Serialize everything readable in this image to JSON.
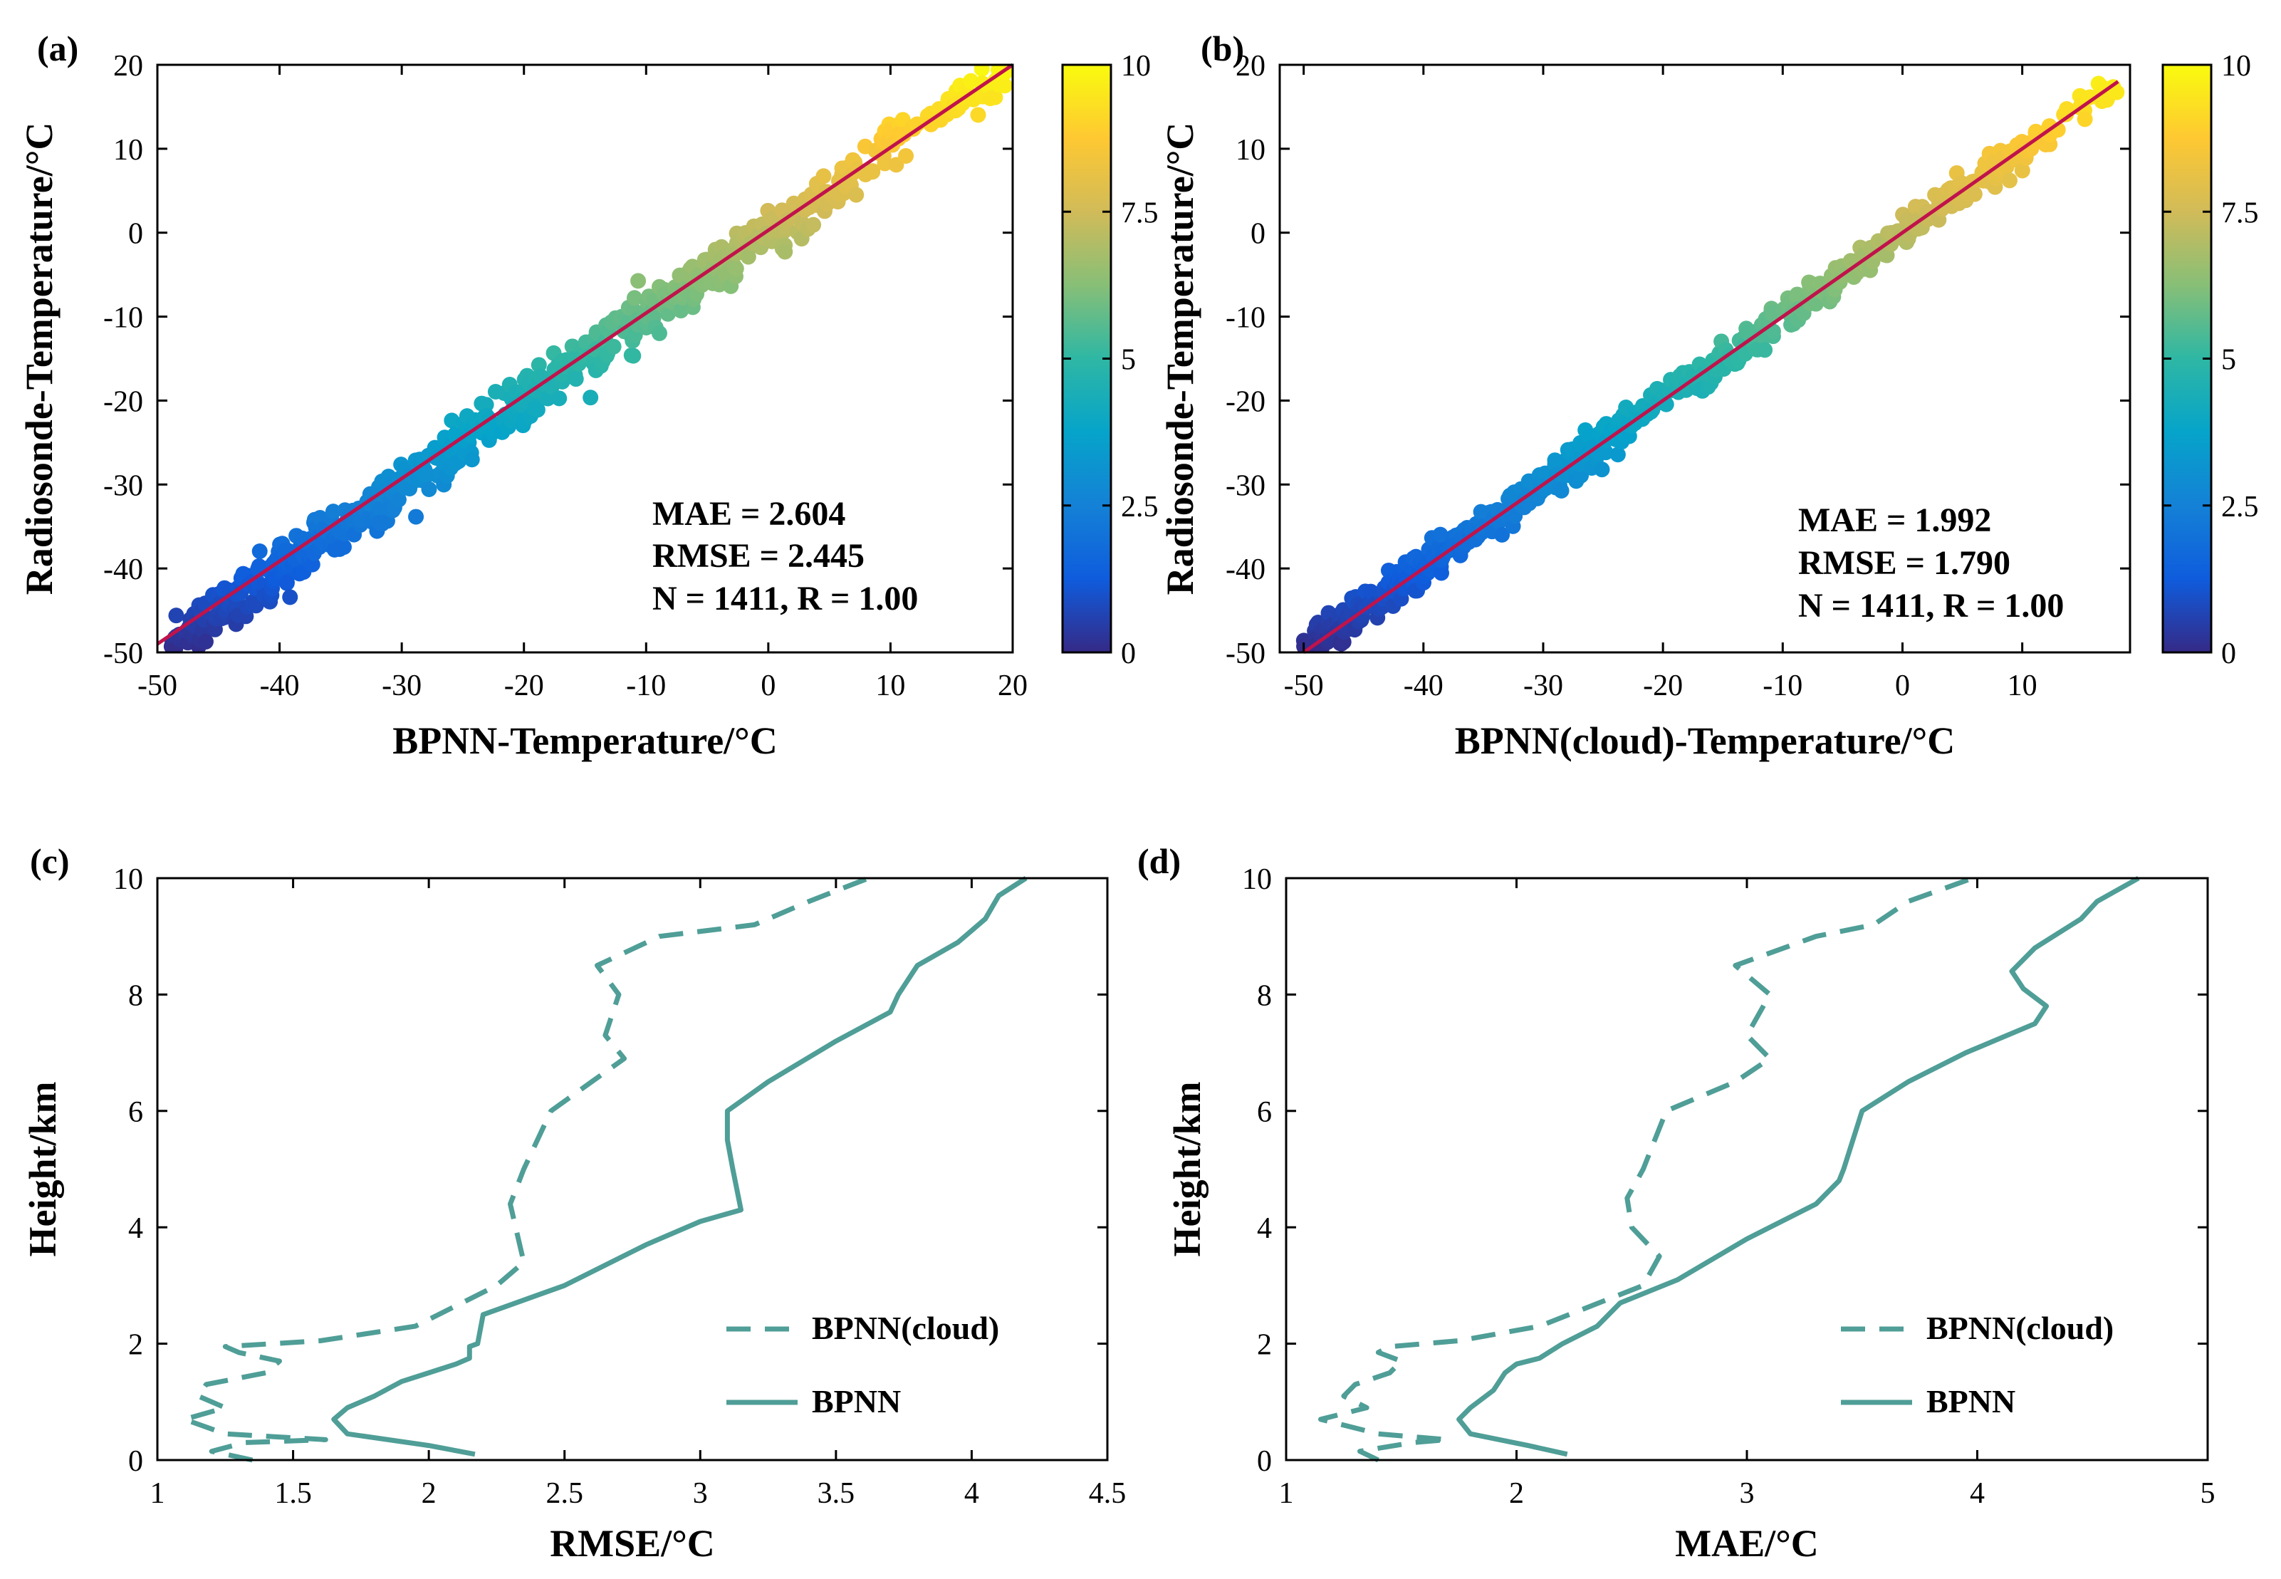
{
  "colors": {
    "teal": "#4f9e97",
    "fit_line": "#c0134b",
    "axis": "#000000"
  },
  "chart_data": [
    {
      "id": "a",
      "panel_label": "(a)",
      "type": "scatter",
      "title": "",
      "xlabel": "BPNN-Temperature/°C",
      "ylabel": "Radiosonde-Temperature/°C",
      "xlim": [
        -50,
        20
      ],
      "ylim": [
        -50,
        20
      ],
      "xticks": [
        -50,
        -40,
        -30,
        -20,
        -10,
        0,
        10,
        20
      ],
      "yticks": [
        -50,
        -40,
        -30,
        -20,
        -10,
        0,
        10,
        20
      ],
      "colorbar": {
        "range": [
          0,
          10
        ],
        "ticks": [
          "0",
          "2.5",
          "5",
          "7.5",
          "10"
        ]
      },
      "fit_line": [
        [
          -50,
          -49
        ],
        [
          20,
          20
        ]
      ],
      "annotations": [
        "MAE = 2.604",
        "RMSE = 2.445",
        "N = 1411, R = 1.00"
      ],
      "points": {
        "n": 1411,
        "x_range": [
          -49,
          20
        ],
        "relation": "y ≈ x",
        "spread": 1.5,
        "color_by": "value scaled -50→0, 20→10"
      }
    },
    {
      "id": "b",
      "panel_label": "(b)",
      "type": "scatter",
      "title": "",
      "xlabel": "BPNN(cloud)-Temperature/°C",
      "ylabel": "Radiosonde-Temperature/°C",
      "xlim": [
        -52,
        19
      ],
      "ylim": [
        -50,
        20
      ],
      "xticks": [
        -50,
        -40,
        -30,
        -20,
        -10,
        0,
        10
      ],
      "yticks": [
        -50,
        -40,
        -30,
        -20,
        -10,
        0,
        10,
        20
      ],
      "colorbar": {
        "range": [
          0,
          10
        ],
        "ticks": [
          "0",
          "2.5",
          "5",
          "7.5",
          "10"
        ]
      },
      "fit_line": [
        [
          -50,
          -50
        ],
        [
          18,
          18
        ]
      ],
      "annotations": [
        "MAE = 1.992",
        "RMSE = 1.790",
        "N = 1411, R = 1.00"
      ],
      "points": {
        "n": 1411,
        "x_range": [
          -50,
          18
        ],
        "relation": "y ≈ x",
        "spread": 1.1,
        "color_by": "value scaled -50→0, 20→10"
      }
    },
    {
      "id": "c",
      "panel_label": "(c)",
      "type": "line",
      "title": "",
      "xlabel": "RMSE/°C",
      "ylabel": "Height/km",
      "xlim": [
        1,
        4.5
      ],
      "ylim": [
        0,
        10
      ],
      "xticks": [
        1,
        1.5,
        2,
        2.5,
        3,
        3.5,
        4,
        4.5
      ],
      "xtick_labels": [
        "1",
        "1.5",
        "2",
        "2.5",
        "3",
        "3.5",
        "4",
        "4.5"
      ],
      "yticks": [
        0,
        2,
        4,
        6,
        8,
        10
      ],
      "legend": {
        "position": "lower-right",
        "entries": [
          "BPNN(cloud)",
          "BPNN"
        ]
      },
      "series": [
        {
          "name": "BPNN(cloud)",
          "style": "dashed",
          "x": [
            1.35,
            1.2,
            1.32,
            1.62,
            1.25,
            1.1,
            1.25,
            1.15,
            1.18,
            1.4,
            1.45,
            1.3,
            1.25,
            1.6,
            1.95,
            2.25,
            2.35,
            2.32,
            2.3,
            2.35,
            2.45,
            2.6,
            2.72,
            2.65,
            2.7,
            2.62,
            2.85,
            3.2,
            3.4,
            3.62
          ],
          "y": [
            0.0,
            0.15,
            0.3,
            0.35,
            0.45,
            0.7,
            0.9,
            1.1,
            1.3,
            1.5,
            1.7,
            1.85,
            1.95,
            2.05,
            2.3,
            3.0,
            3.4,
            4.0,
            4.4,
            5.0,
            6.0,
            6.5,
            6.9,
            7.3,
            8.0,
            8.5,
            9.0,
            9.2,
            9.6,
            10.0
          ]
        },
        {
          "name": "BPNN",
          "style": "solid",
          "x": [
            2.17,
            2.0,
            1.7,
            1.65,
            1.7,
            1.8,
            1.9,
            2.0,
            2.1,
            2.15,
            2.15,
            2.18,
            2.2,
            2.5,
            2.8,
            3.0,
            3.15,
            3.12,
            3.1,
            3.1,
            3.25,
            3.5,
            3.7,
            3.73,
            3.8,
            3.95,
            4.05,
            4.1,
            4.2
          ],
          "y": [
            0.1,
            0.25,
            0.45,
            0.7,
            0.9,
            1.1,
            1.35,
            1.5,
            1.65,
            1.75,
            1.95,
            2.0,
            2.5,
            3.0,
            3.7,
            4.1,
            4.3,
            5.0,
            5.5,
            6.0,
            6.5,
            7.2,
            7.7,
            8.0,
            8.5,
            8.9,
            9.3,
            9.7,
            10.0
          ]
        }
      ]
    },
    {
      "id": "d",
      "panel_label": "(d)",
      "type": "line",
      "title": "",
      "xlabel": "MAE/°C",
      "ylabel": "Height/km",
      "xlim": [
        1,
        5
      ],
      "ylim": [
        0,
        10
      ],
      "xticks": [
        1,
        2,
        3,
        4,
        5
      ],
      "xtick_labels": [
        "1",
        "2",
        "3",
        "4",
        "5"
      ],
      "yticks": [
        0,
        2,
        4,
        6,
        8,
        10
      ],
      "legend": {
        "position": "lower-right",
        "entries": [
          "BPNN(cloud)",
          "BPNN"
        ]
      },
      "series": [
        {
          "name": "BPNN(cloud)",
          "style": "dashed",
          "x": [
            1.4,
            1.32,
            1.55,
            1.7,
            1.4,
            1.15,
            1.35,
            1.25,
            1.3,
            1.45,
            1.5,
            1.4,
            1.45,
            1.75,
            2.1,
            2.55,
            2.62,
            2.5,
            2.48,
            2.55,
            2.65,
            2.95,
            3.1,
            3.0,
            3.1,
            2.95,
            3.3,
            3.55,
            3.7,
            3.98
          ],
          "y": [
            0.0,
            0.15,
            0.3,
            0.35,
            0.45,
            0.7,
            0.9,
            1.1,
            1.3,
            1.5,
            1.7,
            1.85,
            1.95,
            2.05,
            2.3,
            3.0,
            3.5,
            4.0,
            4.5,
            5.0,
            6.0,
            6.5,
            6.9,
            7.3,
            8.0,
            8.5,
            9.0,
            9.2,
            9.6,
            10.0
          ]
        },
        {
          "name": "BPNN",
          "style": "solid",
          "x": [
            2.22,
            2.05,
            1.8,
            1.75,
            1.8,
            1.9,
            1.95,
            2.0,
            2.1,
            2.2,
            2.35,
            2.45,
            2.7,
            3.0,
            3.3,
            3.4,
            3.42,
            3.5,
            3.7,
            3.95,
            4.25,
            4.3,
            4.2,
            4.15,
            4.25,
            4.45,
            4.52,
            4.7
          ],
          "y": [
            0.1,
            0.25,
            0.45,
            0.7,
            0.9,
            1.2,
            1.5,
            1.65,
            1.75,
            2.0,
            2.3,
            2.7,
            3.1,
            3.8,
            4.4,
            4.8,
            5.0,
            6.0,
            6.5,
            7.0,
            7.5,
            7.8,
            8.1,
            8.4,
            8.8,
            9.3,
            9.6,
            10.0
          ]
        }
      ]
    }
  ]
}
